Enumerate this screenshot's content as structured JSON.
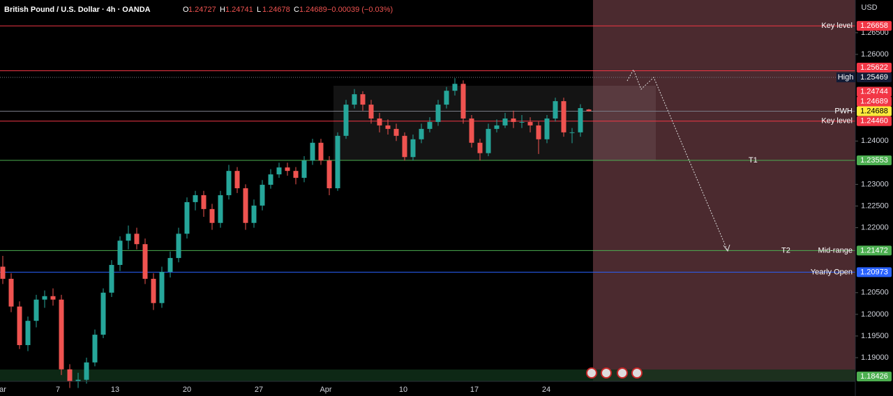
{
  "chart_data": {
    "type": "candlestick",
    "title": "British Pound / U.S. Dollar · 4h · OANDA",
    "ohlc_letters": [
      "O",
      "H",
      "L",
      "C"
    ],
    "ohlc_values": [
      1.24727,
      1.24741,
      1.24678,
      1.24689
    ],
    "change": "−0.00039 (−0.03%)",
    "currency": "USD",
    "up_color": "#26a69a",
    "down_color": "#ef5350",
    "ylim": [
      1.18453,
      1.27255
    ],
    "yticks": [
      {
        "value": 1.265,
        "label": "1.26500"
      },
      {
        "value": 1.26,
        "label": "1.26000"
      },
      {
        "value": 1.24,
        "label": "1.24000"
      },
      {
        "value": 1.23,
        "label": "1.23000"
      },
      {
        "value": 1.225,
        "label": "1.22500"
      },
      {
        "value": 1.22,
        "label": "1.22000"
      },
      {
        "value": 1.205,
        "label": "1.20500"
      },
      {
        "value": 1.2,
        "label": "1.20000"
      },
      {
        "value": 1.195,
        "label": "1.19500"
      },
      {
        "value": 1.19,
        "label": "1.19000"
      }
    ],
    "x_labels": [
      "ar",
      "7",
      "13",
      "20",
      "27",
      "Apr",
      "10",
      "17",
      "24"
    ],
    "candles": [
      [
        1.211,
        1.2135,
        1.207,
        1.2082
      ],
      [
        1.2082,
        1.2095,
        1.2005,
        1.2018
      ],
      [
        1.2018,
        1.203,
        1.192,
        1.1929
      ],
      [
        1.1929,
        1.1995,
        1.1915,
        1.1985
      ],
      [
        1.1985,
        1.2045,
        1.197,
        1.2034
      ],
      [
        1.2034,
        1.2055,
        1.2015,
        1.2042
      ],
      [
        1.2042,
        1.206,
        1.202,
        1.2034
      ],
      [
        1.2034,
        1.2045,
        1.186,
        1.1873
      ],
      [
        1.1873,
        1.1885,
        1.183,
        1.1845
      ],
      [
        1.1845,
        1.1865,
        1.183,
        1.1849
      ],
      [
        1.1849,
        1.19,
        1.184,
        1.1889
      ],
      [
        1.1889,
        1.1965,
        1.188,
        1.1953
      ],
      [
        1.1953,
        1.206,
        1.1945,
        1.205
      ],
      [
        1.205,
        1.2125,
        1.204,
        1.2114
      ],
      [
        1.2114,
        1.218,
        1.21,
        1.217
      ],
      [
        1.217,
        1.2205,
        1.215,
        1.2186
      ],
      [
        1.2186,
        1.22,
        1.215,
        1.2162
      ],
      [
        1.2162,
        1.2175,
        1.207,
        1.2082
      ],
      [
        1.2082,
        1.2095,
        1.201,
        1.2026
      ],
      [
        1.2026,
        1.211,
        1.2015,
        1.2098
      ],
      [
        1.2098,
        1.2145,
        1.2085,
        1.213
      ],
      [
        1.213,
        1.22,
        1.212,
        1.2186
      ],
      [
        1.2186,
        1.227,
        1.2175,
        1.2259
      ],
      [
        1.2259,
        1.2285,
        1.224,
        1.2275
      ],
      [
        1.2275,
        1.2285,
        1.2225,
        1.2243
      ],
      [
        1.2243,
        1.2255,
        1.2195,
        1.2211
      ],
      [
        1.2211,
        1.2285,
        1.22,
        1.2275
      ],
      [
        1.2275,
        1.2345,
        1.2265,
        1.2331
      ],
      [
        1.2331,
        1.234,
        1.228,
        1.2291
      ],
      [
        1.2291,
        1.23,
        1.2195,
        1.2211
      ],
      [
        1.2211,
        1.2265,
        1.22,
        1.2251
      ],
      [
        1.2251,
        1.231,
        1.224,
        1.2299
      ],
      [
        1.2299,
        1.2335,
        1.229,
        1.2323
      ],
      [
        1.2323,
        1.235,
        1.2315,
        1.2339
      ],
      [
        1.2339,
        1.235,
        1.232,
        1.2331
      ],
      [
        1.2331,
        1.234,
        1.23,
        1.2315
      ],
      [
        1.2315,
        1.2365,
        1.2305,
        1.2355
      ],
      [
        1.2355,
        1.2405,
        1.2345,
        1.2396
      ],
      [
        1.2396,
        1.2405,
        1.2345,
        1.2355
      ],
      [
        1.2355,
        1.2365,
        1.2275,
        1.2291
      ],
      [
        1.2291,
        1.242,
        1.2285,
        1.2412
      ],
      [
        1.2412,
        1.2495,
        1.2405,
        1.2484
      ],
      [
        1.2484,
        1.252,
        1.2475,
        1.2508
      ],
      [
        1.2508,
        1.2515,
        1.247,
        1.2484
      ],
      [
        1.2484,
        1.2495,
        1.244,
        1.2452
      ],
      [
        1.2452,
        1.2465,
        1.242,
        1.2436
      ],
      [
        1.2436,
        1.245,
        1.2415,
        1.2428
      ],
      [
        1.2428,
        1.244,
        1.24,
        1.2412
      ],
      [
        1.2412,
        1.242,
        1.2355,
        1.2363
      ],
      [
        1.2363,
        1.2415,
        1.2355,
        1.2404
      ],
      [
        1.2404,
        1.244,
        1.2395,
        1.2428
      ],
      [
        1.2428,
        1.2455,
        1.242,
        1.2444
      ],
      [
        1.2444,
        1.2495,
        1.2435,
        1.2484
      ],
      [
        1.2484,
        1.2525,
        1.2475,
        1.2516
      ],
      [
        1.2516,
        1.2545,
        1.2505,
        1.2532
      ],
      [
        1.2532,
        1.254,
        1.244,
        1.2452
      ],
      [
        1.2452,
        1.246,
        1.2385,
        1.2396
      ],
      [
        1.2396,
        1.2405,
        1.2355,
        1.2372
      ],
      [
        1.2372,
        1.244,
        1.2365,
        1.2428
      ],
      [
        1.2428,
        1.245,
        1.242,
        1.2436
      ],
      [
        1.2436,
        1.2465,
        1.243,
        1.2452
      ],
      [
        1.2452,
        1.247,
        1.243,
        1.2444
      ],
      [
        1.2444,
        1.246,
        1.243,
        1.2444
      ],
      [
        1.2444,
        1.2455,
        1.242,
        1.2436
      ],
      [
        1.2436,
        1.2445,
        1.237,
        1.2404
      ],
      [
        1.2404,
        1.246,
        1.2395,
        1.2452
      ],
      [
        1.2452,
        1.25,
        1.2445,
        1.2492
      ],
      [
        1.2492,
        1.25,
        1.241,
        1.242
      ],
      [
        1.242,
        1.243,
        1.2395,
        1.242
      ],
      [
        1.242,
        1.2485,
        1.241,
        1.2476
      ],
      [
        1.24727,
        1.24741,
        1.24678,
        1.24689
      ]
    ],
    "levels": [
      {
        "value": 1.26658,
        "tag": "1.26658",
        "label": "Key level",
        "color": "#f23645",
        "line": "solid"
      },
      {
        "value": 1.25622,
        "tag": "1.25622",
        "color": "#f23645",
        "line": "solid"
      },
      {
        "value": 1.25469,
        "tag": "1.25469",
        "label": "High",
        "label_style": "box",
        "color": "#131c36",
        "line": "dotted",
        "line_color": "#787b86"
      },
      {
        "value": 1.24744,
        "tag": "1.24744",
        "color": "#f23645"
      },
      {
        "value": 1.24689,
        "tag": "1.24689",
        "color": "#f23645",
        "line": "dotted"
      },
      {
        "value": 1.24688,
        "tag": "1.24688",
        "label": "PWH",
        "color": "#ffeb3b",
        "text_color": "#000000",
        "line": "solid",
        "line_color": "#787b86"
      },
      {
        "value": 1.2446,
        "tag": "1.24460",
        "label": "Key level",
        "color": "#f23645",
        "line": "solid"
      },
      {
        "value": 1.23553,
        "tag": "1.23553",
        "note": "T1",
        "color": "#4caf50",
        "line": "solid"
      },
      {
        "value": 1.21472,
        "tag": "1.21472",
        "label": "Mid-range",
        "note": "T2",
        "color": "#4caf50",
        "line": "solid"
      },
      {
        "value": 1.20973,
        "tag": "1.20973",
        "label": "Yearly Open",
        "color": "#2962ff",
        "line": "solid"
      },
      {
        "value": 1.18426,
        "tag": "1.18426",
        "color": "#4caf50"
      }
    ]
  }
}
